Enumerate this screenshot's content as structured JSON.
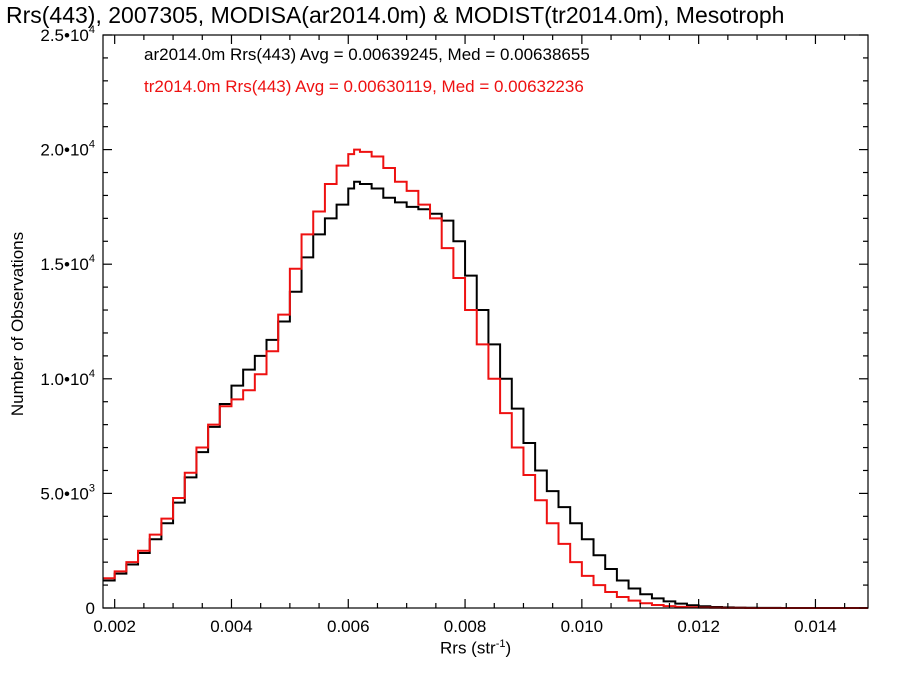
{
  "title": "Rrs(443), 2007305, MODISA(ar2014.0m) & MODIST(tr2014.0m), Mesotroph",
  "stats": {
    "ar": "ar2014.0m Rrs(443) Avg = 0.00639245, Med = 0.00638655",
    "tr": "tr2014.0m Rrs(443) Avg = 0.00630119, Med = 0.00632236"
  },
  "axes": {
    "ylabel": "Number of Observations",
    "xlabel_main": "Rrs (str",
    "xlabel_sup": "-1",
    "xlabel_end": ")"
  },
  "chart_data": {
    "type": "line",
    "xlim": [
      0.0018,
      0.0149
    ],
    "ylim": [
      0,
      25000
    ],
    "x_ticks": [
      "0.002",
      "0.004",
      "0.006",
      "0.008",
      "0.010",
      "0.012",
      "0.014"
    ],
    "y_ticks": [
      {
        "mant": "0",
        "exp": ""
      },
      {
        "mant": "5.0•10",
        "exp": "3"
      },
      {
        "mant": "1.0•10",
        "exp": "4"
      },
      {
        "mant": "1.5•10",
        "exp": "4"
      },
      {
        "mant": "2.0•10",
        "exp": "4"
      },
      {
        "mant": "2.5•10",
        "exp": "4"
      }
    ],
    "x_tick_values": [
      0.002,
      0.004,
      0.006,
      0.008,
      0.01,
      0.012,
      0.014
    ],
    "y_tick_values": [
      0,
      5000,
      10000,
      15000,
      20000,
      25000
    ],
    "legend": "top-left",
    "grid": false,
    "series": [
      {
        "name": "ar2014.0m",
        "color": "#000000",
        "x": [
          0.0018,
          0.002,
          0.0022,
          0.0024,
          0.0026,
          0.0028,
          0.003,
          0.0032,
          0.0034,
          0.0036,
          0.0038,
          0.004,
          0.0042,
          0.0044,
          0.0046,
          0.0048,
          0.005,
          0.0052,
          0.0054,
          0.0056,
          0.0058,
          0.006,
          0.0061,
          0.0062,
          0.0064,
          0.0066,
          0.0068,
          0.007,
          0.0072,
          0.0074,
          0.0076,
          0.0078,
          0.008,
          0.0082,
          0.0084,
          0.0086,
          0.0088,
          0.009,
          0.0092,
          0.0094,
          0.0096,
          0.0098,
          0.01,
          0.0102,
          0.0104,
          0.0106,
          0.0108,
          0.011,
          0.0112,
          0.0114,
          0.0116,
          0.0118,
          0.012,
          0.0122,
          0.0124,
          0.0126,
          0.0128,
          0.013,
          0.0132,
          0.0134,
          0.0136,
          0.0138,
          0.014,
          0.0142,
          0.0144,
          0.0146,
          0.0149
        ],
        "y": [
          1200,
          1500,
          1900,
          2400,
          3000,
          3700,
          4600,
          5700,
          6800,
          7900,
          8900,
          9700,
          10400,
          11000,
          11700,
          12500,
          13800,
          15300,
          16300,
          17000,
          17600,
          18300,
          18600,
          18500,
          18300,
          17900,
          17700,
          17500,
          17400,
          17200,
          16900,
          16000,
          14500,
          13000,
          11500,
          10000,
          8700,
          7200,
          6000,
          5100,
          4400,
          3700,
          3000,
          2300,
          1700,
          1200,
          850,
          600,
          420,
          290,
          190,
          120,
          75,
          45,
          28,
          18,
          10,
          6,
          4,
          2,
          1,
          1,
          0,
          0,
          0,
          0,
          0
        ]
      },
      {
        "name": "tr2014.0m",
        "color": "#ee1111",
        "x": [
          0.0018,
          0.002,
          0.0022,
          0.0024,
          0.0026,
          0.0028,
          0.003,
          0.0032,
          0.0034,
          0.0036,
          0.0038,
          0.004,
          0.0042,
          0.0044,
          0.0046,
          0.0048,
          0.005,
          0.0052,
          0.0054,
          0.0056,
          0.0058,
          0.006,
          0.0061,
          0.0062,
          0.0064,
          0.0066,
          0.0068,
          0.007,
          0.0072,
          0.0074,
          0.0076,
          0.0078,
          0.008,
          0.0082,
          0.0084,
          0.0086,
          0.0088,
          0.009,
          0.0092,
          0.0094,
          0.0096,
          0.0098,
          0.01,
          0.0102,
          0.0104,
          0.0106,
          0.0108,
          0.011,
          0.0112,
          0.0114,
          0.0116,
          0.0118,
          0.012,
          0.0122,
          0.0124,
          0.0126,
          0.0128,
          0.013,
          0.0132,
          0.0134,
          0.0136,
          0.0138,
          0.014,
          0.0142,
          0.0144,
          0.0146,
          0.0149
        ],
        "y": [
          1300,
          1600,
          2000,
          2500,
          3200,
          3900,
          4800,
          5900,
          7000,
          8000,
          8800,
          9100,
          9500,
          10200,
          11200,
          12800,
          14800,
          16300,
          17300,
          18500,
          19300,
          19800,
          20000,
          19900,
          19700,
          19200,
          18600,
          18200,
          17600,
          17000,
          15700,
          14400,
          13000,
          11500,
          10000,
          8500,
          7000,
          5800,
          4700,
          3700,
          2800,
          2000,
          1400,
          1000,
          700,
          480,
          320,
          210,
          130,
          80,
          50,
          30,
          18,
          10,
          6,
          3,
          2,
          1,
          0,
          0,
          0,
          0,
          0,
          0,
          0,
          0,
          0
        ]
      }
    ]
  }
}
